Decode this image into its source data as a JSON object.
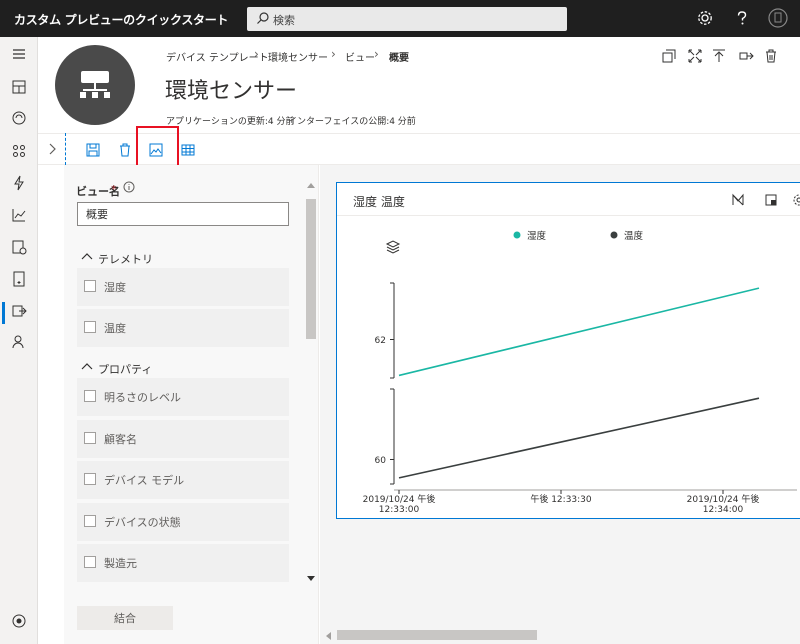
{
  "app": {
    "title": "カスタム プレビューのクイックスタート",
    "search_placeholder": "検索"
  },
  "breadcrumb": [
    "デバイス テンプレート",
    "環境センサー",
    "ビュー",
    "概要"
  ],
  "page": {
    "title": "環境センサー",
    "app_version": "アプリケーションの更新:4 分前",
    "interface_published": "インターフェイスの公開:4 分前"
  },
  "panel": {
    "view_name_label": "ビュー名",
    "required_mark": "*",
    "view_name_value": "概要",
    "telemetry_section": "テレメトリ",
    "telemetry_items": [
      "湿度",
      "温度"
    ],
    "property_section": "プロパティ",
    "property_items": [
      "明るさのレベル",
      "顧客名",
      "デバイス モデル",
      "デバイスの状態",
      "製造元"
    ],
    "join_button": "結合"
  },
  "tile": {
    "title": "湿度 温度"
  },
  "chart_data": {
    "type": "line",
    "legend": [
      "湿度",
      "温度"
    ],
    "legend_placement": "top-center",
    "x_ticks": [
      "2019/10/24 午後\n12:33:00",
      "午後 12:33:30",
      "2019/10/24 午後\n12:34:00"
    ],
    "series": [
      {
        "name": "湿度",
        "color": "#1ab7a4",
        "x": [
          "12:33:00",
          "12:34:00"
        ],
        "y": [
          61.3,
          63.0
        ],
        "ticks": [
          "62"
        ]
      },
      {
        "name": "温度",
        "color": "#3a3f3f",
        "x": [
          "12:33:00",
          "12:34:00"
        ],
        "y": [
          59.7,
          61.0
        ],
        "ticks": [
          "60"
        ]
      }
    ]
  },
  "colors": {
    "accent": "#0078d4",
    "highlight": "#e81123",
    "topbar": "#1f1f1f"
  }
}
